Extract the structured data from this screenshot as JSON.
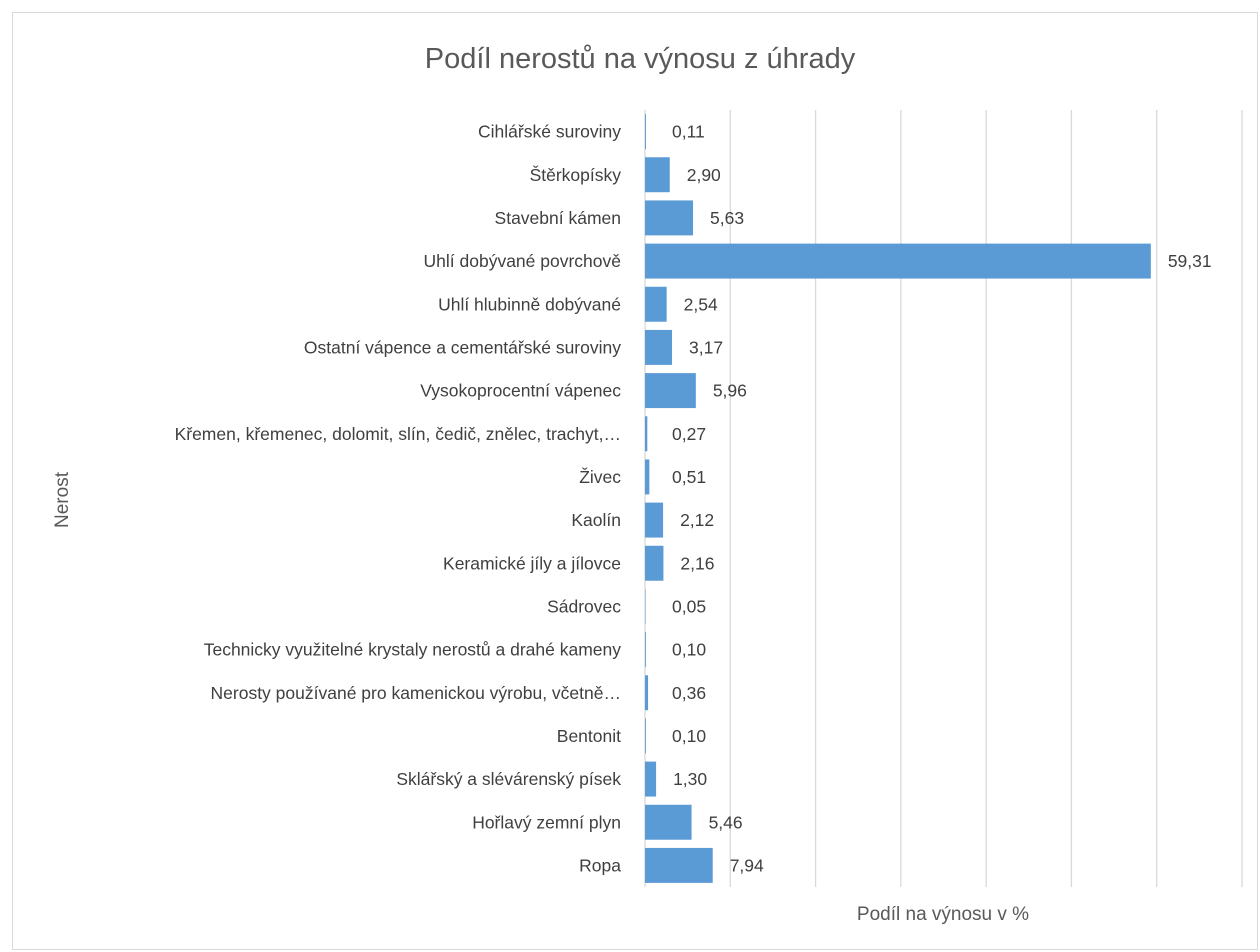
{
  "chart_data": {
    "type": "bar",
    "orientation": "horizontal",
    "title": "Podíl nerostů na výnosu z úhrady",
    "xlabel": "Podíl na výnosu v %",
    "ylabel": "Nerost",
    "xlim": [
      0,
      70
    ],
    "grid": "vertical",
    "bar_color": "#5b9bd5",
    "categories": [
      "Cihlářské suroviny",
      "Štěrkopísky",
      "Stavební kámen",
      "Uhlí dobývané povrchově",
      "Uhlí hlubinně dobývané",
      "Ostatní vápence a cementářské suroviny",
      "Vysokoprocentní vápenec",
      "Křemen, křemenec, dolomit, slín, čedič, znělec, trachyt,…",
      "Živec",
      "Kaolín",
      "Keramické jíly a jílovce",
      "Sádrovec",
      "Technicky využitelné krystaly nerostů a drahé kameny",
      "Nerosty používané pro kamenickou výrobu, včetně…",
      "Bentonit",
      "Sklářský a slévárenský písek",
      "Hořlavý zemní plyn",
      "Ropa"
    ],
    "values": [
      0.11,
      2.9,
      5.63,
      59.31,
      2.54,
      3.17,
      5.96,
      0.27,
      0.51,
      2.12,
      2.16,
      0.05,
      0.1,
      0.36,
      0.1,
      1.3,
      5.46,
      7.94
    ],
    "value_labels": [
      "0,11",
      "2,90",
      "5,63",
      "59,31",
      "2,54",
      "3,17",
      "5,96",
      "0,27",
      "0,51",
      "2,12",
      "2,16",
      "0,05",
      "0,10",
      "0,36",
      "0,10",
      "1,30",
      "5,46",
      "7,94"
    ]
  }
}
